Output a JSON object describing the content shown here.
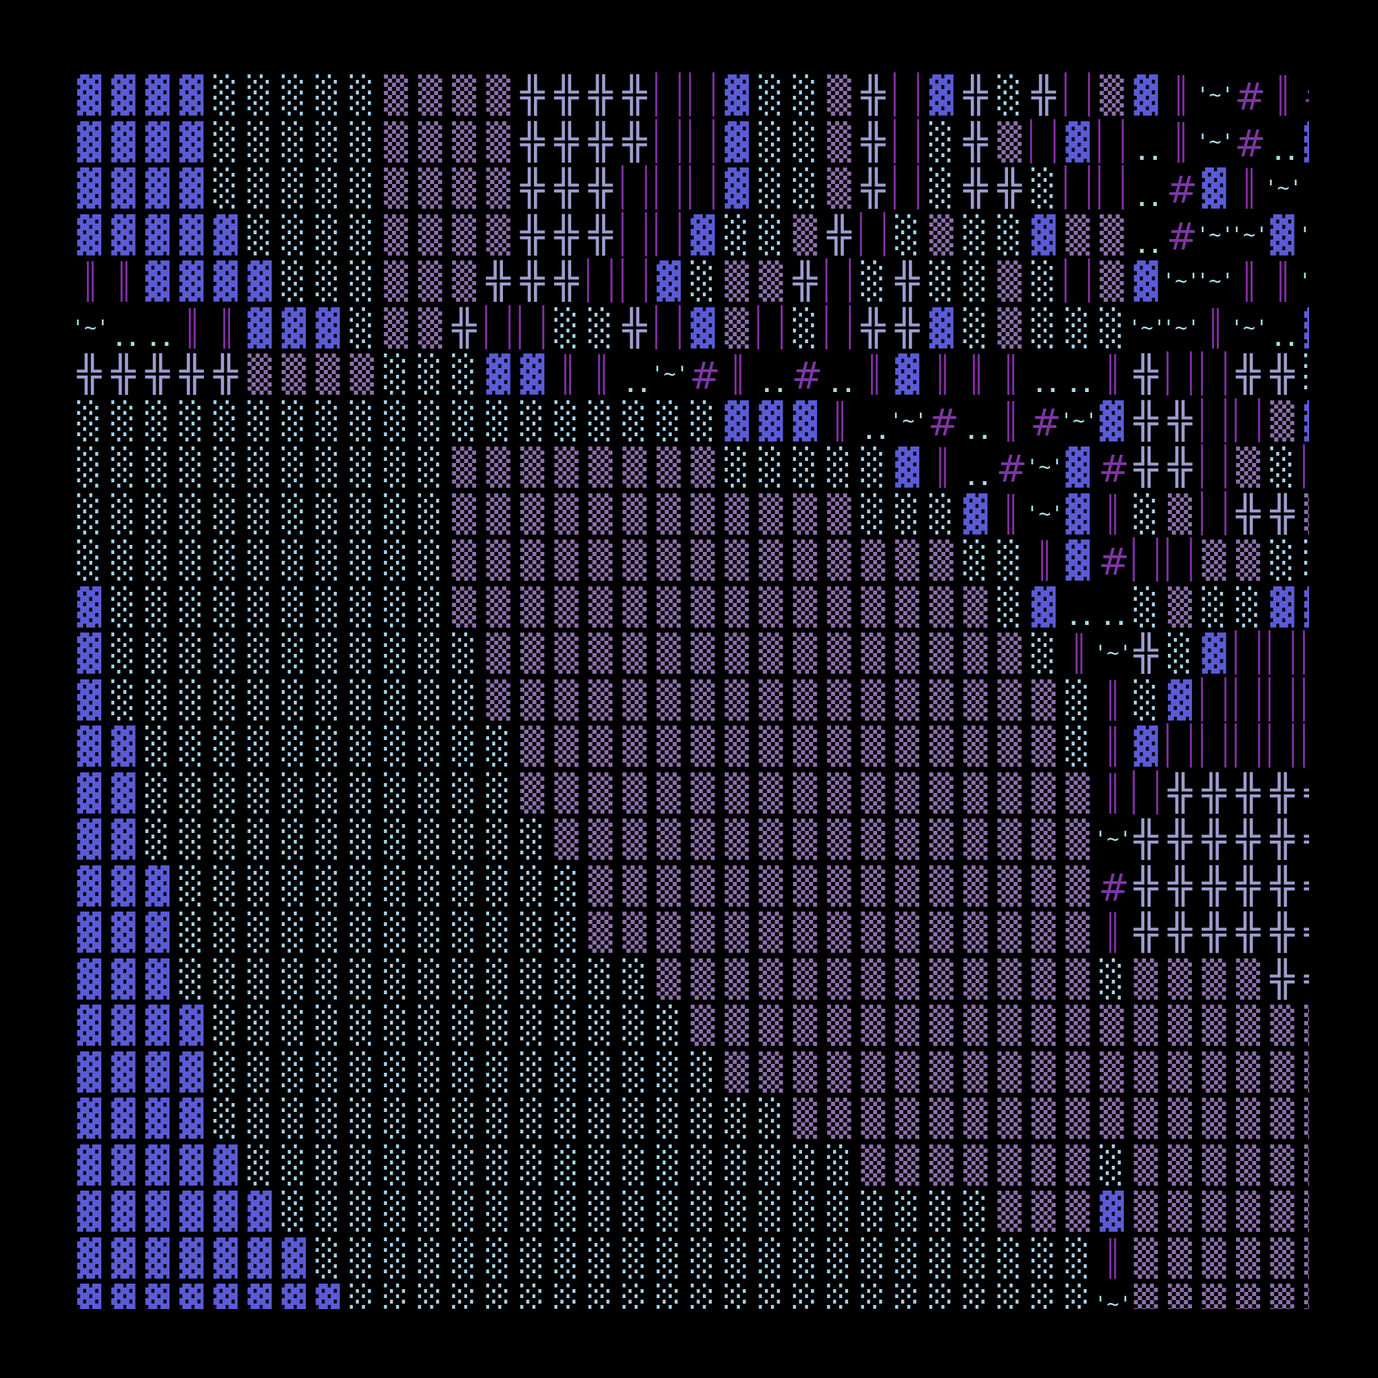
{
  "background": "#000000",
  "legend": {
    "B": {
      "glyph": "▓",
      "color": "#5b5bd6",
      "kind": "dark-shade"
    },
    "L": {
      "glyph": "░",
      "color": "#a6d2ea",
      "kind": "light-shade"
    },
    "M": {
      "glyph": "▒",
      "color": "#8e70ad",
      "kind": "medium-shade"
    },
    "X": {
      "glyph": "╬",
      "color": "#9e9ccf",
      "kind": "double-cross"
    },
    "P": {
      "glyph": "| |",
      "color": "#7d2c9f",
      "kind": "bar-pair"
    },
    "D": {
      "glyph": "‖",
      "color": "#7d2c9f",
      "kind": "double-bar"
    },
    "T": {
      "glyph": "'~'",
      "color": "#a9dce8",
      "kind": "tilde"
    },
    "O": {
      "glyph": "..",
      "color": "#a9dce8",
      "kind": "dots"
    },
    "H": {
      "glyph": "#",
      "color": "#7d36a3",
      "kind": "hash"
    },
    "_": {
      "glyph": "",
      "color": "#000000",
      "kind": "blank"
    }
  },
  "rows": [
    "BBBBLLLLLMMMMXXXXPPBLLMXPBXLXPMBDTHDH",
    "BBBBLLLLLMMMMXXXXPPBLLMXPLXMPBPODTHOB",
    "BBBBLLLLLMMMMXXXPPPBLLMXPLXXLPPOHBDT_",
    "BBBBBLLLLMMMMXXXPPBLLMXPLMLLBMMOHTTBT",
    "DDBBBBLLLMMMXXXPPBLMMXPLXLLMLPMBTTDDT",
    "TOODDBBBLMMXPPLLXPBMPLPXXBLMLLLTTDTOB",
    "XXXXXMMMMLLLBBDDOTHDOHODBDDDOODXPPXXL",
    "LLLLLLLLLLLLLLLLLLLBBBDOTHODHTBXXPPMB",
    "LLLLLLLLLLLMMMMMMMMLLLLLBDOHTBHXXPMLP",
    "LLLLLLLLLLLMMMMMMMMMMMMLLLBDTBDLMPXXM",
    "LLLLLLLLLLLMMMMMMMMMMMMMMMLLDBHPPMMLL",
    "BLLLLLLLLLLMMMMMMMMMMMMMMMMLBOOLMLLBB",
    "BLLLLLLLLLLLMMMMMMMMMMMMMMMMLDTXLBPPP",
    "BLLLLLLLLLLLMMMMMMMMMMMMMMMMMLDLBPPPP",
    "BBLLLLLLLLLLLMMMMMMMMMMMMMMMMLDBPPPPP",
    "BBLLLLLLLLLLLMMMMMMMMMMMMMMMMMDPXXXXX",
    "BBLLLLLLLLLLLLMMMMMMMMMMMMMMMMTXXXXXX",
    "BBBLLLLLLLLLLLLMMMMMMMMMMMMMMMHXXXXXX",
    "BBBLLLLLLLLLLLLMMMMMMMMMMMMMMMDXXXXXX",
    "BBBLLLLLLLLLLLLLLMMMMMMMMMMMMMLMMMMXX",
    "BBBBLLLLLLLLLLLLLLMMMMMMMMMMMMMMMMMMM",
    "BBBBLLLLLLLLLLLLLLLMMMMMMMMMMMMMMMMMM",
    "BBBBLLLLLLLLLLLLLLLLLMMMMMMMMMMMMMMMM",
    "BBBBBLLLLLLLLLLLLLLLLLLMMMMMMMLMMMMMM",
    "BBBBBBLLLLLLLLLLLLLLLLLLLLLMMMBMMMMMM",
    "BBBBBBBLLLLLLLLLLLLLLLLLLLLLLLDMMMMMM",
    "BBBBBBBBLLLLLLLLLLLLLLLLLLLLLLTMMMMMM"
  ]
}
